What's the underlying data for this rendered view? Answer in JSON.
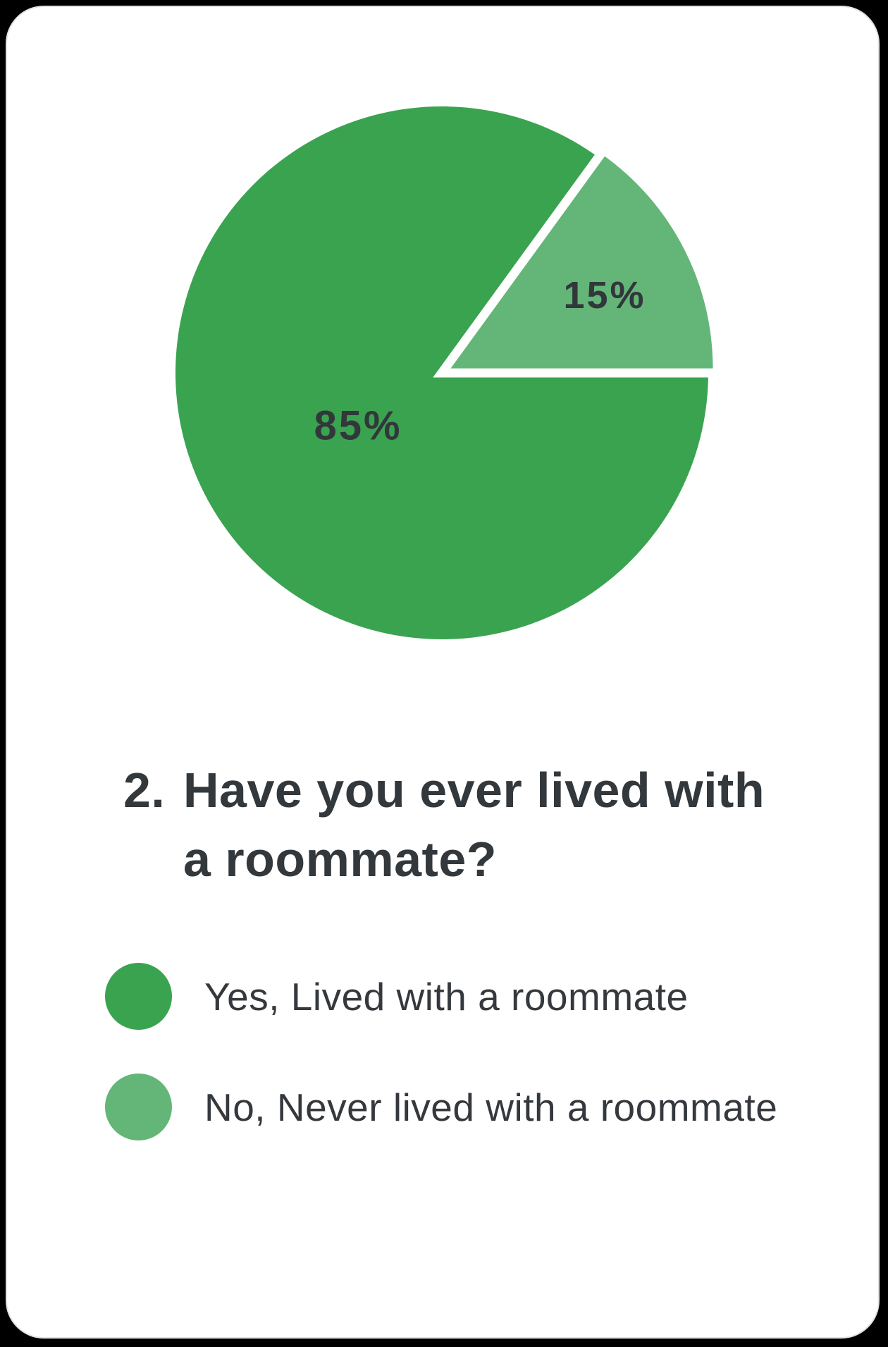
{
  "card": {
    "background": "#ffffff",
    "corner_border": "#e2e2e2"
  },
  "chart_data": {
    "type": "pie",
    "title": "2. Have you ever lived with a roommate?",
    "title_prefix": "2.",
    "title_lines": [
      "Have you ever lived with",
      "a roommate?"
    ],
    "legend_position": "bottom-left",
    "label_color": "#32373b",
    "separator_color": "#ffffff",
    "slices": [
      {
        "label": "Yes, Lived with a roommate",
        "value": 85,
        "display": "85%",
        "color": "#3aa350",
        "exploded": false
      },
      {
        "label": "No, Never lived with a roommate",
        "value": 15,
        "display": "15%",
        "color": "#63b677",
        "exploded": true
      }
    ]
  }
}
